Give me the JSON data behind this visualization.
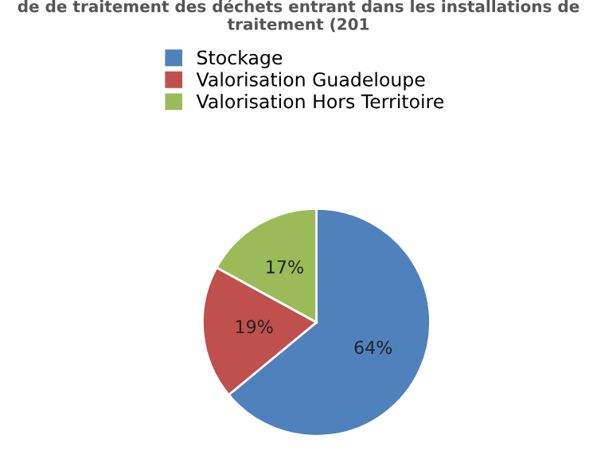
{
  "chart_data": {
    "type": "pie",
    "title": "de de traitement des déchets entrant dans les installations de traitement (201",
    "categories": [
      "Stockage",
      "Valorisation Guadeloupe",
      "Valorisation Hors Territoire"
    ],
    "values": [
      64,
      19,
      17
    ],
    "colors": [
      "#4f81bd",
      "#c0504d",
      "#9bbb59"
    ],
    "value_labels": [
      "64%",
      "19%",
      "17%"
    ],
    "legend": "top"
  }
}
